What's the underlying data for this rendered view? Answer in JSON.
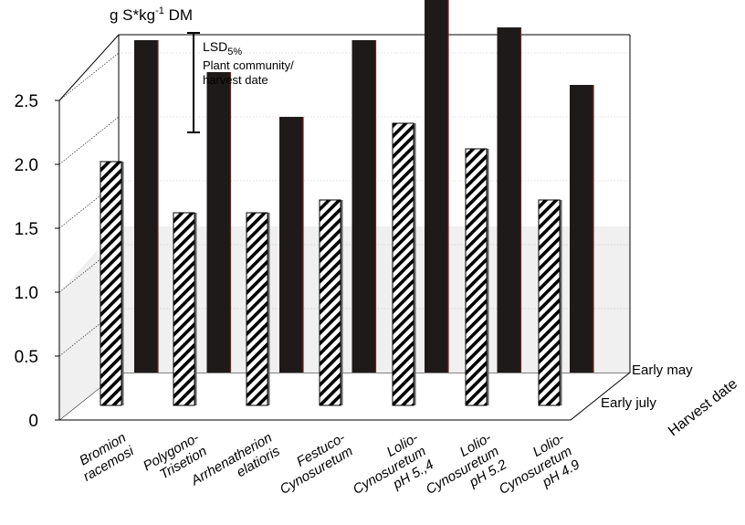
{
  "chart_data": {
    "type": "bar",
    "y_unit_label": "g S*kg",
    "y_unit_sup": "-1",
    "y_unit_suffix": " DM",
    "yticks": [
      "0",
      "0.5",
      "1.0",
      "1.5",
      "2.0",
      "2.5"
    ],
    "ylim": [
      0,
      3.0
    ],
    "categories": [
      [
        "Bromion",
        "racemosi"
      ],
      [
        "Polygono-",
        "Trisetion"
      ],
      [
        "Arrhenatherion",
        "elatioris"
      ],
      [
        "Festuco-",
        "Cynosuretum"
      ],
      [
        "Lolio-",
        "Cynosuretum",
        "pH 5.,4"
      ],
      [
        "Lolio-",
        "Cynosuretum",
        "pH 5.2"
      ],
      [
        "Lolio-",
        "Cynosuretum",
        "pH 4.9"
      ]
    ],
    "series": [
      {
        "name": "Early july",
        "values": [
          1.9,
          1.5,
          1.5,
          1.6,
          2.2,
          2.0,
          1.6
        ],
        "color": "hatched"
      },
      {
        "name": "Early may",
        "values": [
          2.6,
          2.35,
          2.0,
          2.6,
          2.95,
          2.7,
          2.25
        ],
        "color": "#1f1a1a"
      }
    ],
    "depth_axis_label": "Harvest date",
    "lsd": {
      "label": "LSD",
      "sub": "5%",
      "line1": "Plant community/",
      "line2": "harvest date",
      "low": 2.2,
      "high": 3.05
    },
    "grid": true
  }
}
